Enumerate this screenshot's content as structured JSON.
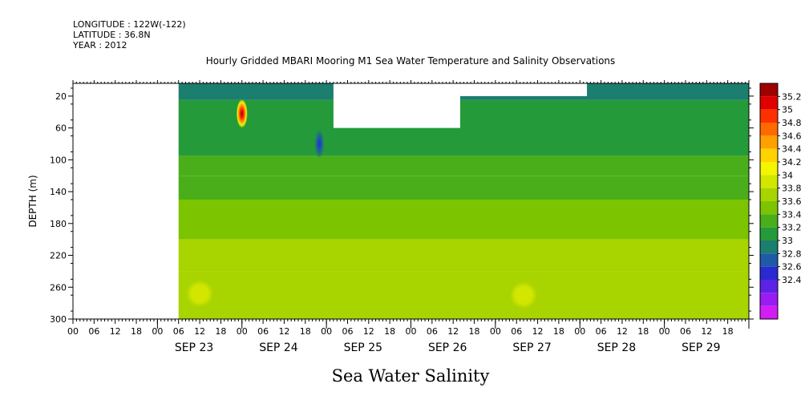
{
  "header": {
    "longitude": "LONGITUDE : 122W(-122)",
    "latitude": "LATITUDE : 36.8N",
    "year": "YEAR : 2012"
  },
  "chart_data": {
    "type": "heatmap",
    "title": "Hourly Gridded MBARI Mooring M1 Sea Water Temperature and Salinity Observations",
    "xlabel": "Sea Water Salinity",
    "ylabel": "DEPTH (m)",
    "x_unit": "hours since SEP 23 00",
    "xlim": [
      -24,
      168
    ],
    "ylim": [
      300,
      4
    ],
    "y_ticks": [
      20,
      60,
      100,
      140,
      180,
      220,
      260,
      300
    ],
    "x_hour_ticks": [
      "00",
      "06",
      "12",
      "18",
      "00",
      "06",
      "12",
      "18",
      "00",
      "06",
      "12",
      "18",
      "00",
      "06",
      "12",
      "18",
      "00",
      "06",
      "12",
      "18",
      "00",
      "06",
      "12",
      "18",
      "00",
      "06",
      "12",
      "18",
      "00",
      "06",
      "12",
      "18"
    ],
    "x_day_labels": [
      "SEP 23",
      "SEP 24",
      "SEP 25",
      "SEP 26",
      "SEP 27",
      "SEP 28",
      "SEP 29"
    ],
    "colorbar": {
      "levels": [
        35.2,
        35,
        34.8,
        34.6,
        34.4,
        34.2,
        34,
        33.8,
        33.6,
        33.4,
        33.2,
        33,
        32.8,
        32.6,
        32.4
      ],
      "colors": [
        "#a00000",
        "#e00000",
        "#ff3000",
        "#ff6a00",
        "#ffa000",
        "#ffd200",
        "#f5f500",
        "#d2e600",
        "#a8d400",
        "#7cc400",
        "#4aae1a",
        "#249a3a",
        "#1c7e6e",
        "#1e5aa8",
        "#2a2ad2",
        "#5c22e6",
        "#9a1cf0",
        "#d21ef5"
      ]
    },
    "data_start_hour": 6,
    "data_end_hour": 168,
    "gaps": [
      {
        "t0": 50,
        "t1": 86,
        "depth0": 4,
        "depth1": 60
      },
      {
        "t0": 86,
        "t1": 122,
        "depth0": 4,
        "depth1": 20
      }
    ],
    "bands": [
      {
        "depth0": 4,
        "depth1": 25,
        "value": 33.3
      },
      {
        "depth0": 25,
        "depth1": 95,
        "value": 33.45
      },
      {
        "depth0": 95,
        "depth1": 120,
        "value": 33.6
      },
      {
        "depth0": 120,
        "depth1": 150,
        "value": 33.75
      },
      {
        "depth0": 150,
        "depth1": 200,
        "value": 33.9
      },
      {
        "depth0": 200,
        "depth1": 240,
        "value": 34.0
      },
      {
        "depth0": 240,
        "depth1": 300,
        "value": 34.1
      }
    ],
    "features": [
      {
        "t": 24,
        "depth": 42,
        "value": 35.1
      },
      {
        "t": 46,
        "depth": 80,
        "value": 32.7
      },
      {
        "t": 12,
        "depth": 268,
        "value": 34.3
      },
      {
        "t": 104,
        "depth": 270,
        "value": 34.3
      }
    ]
  }
}
